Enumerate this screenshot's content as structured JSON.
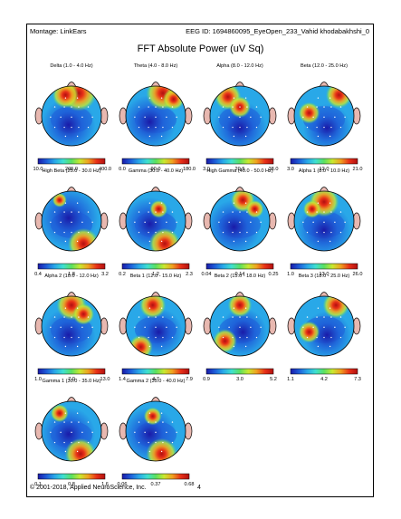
{
  "header": {
    "montage": "Montage:  LinkEars",
    "eeg_id": "EEG ID:  1694860095_EyeOpen_233_Vahid khodabakhshi_0"
  },
  "title": "FFT Absolute Power  (uV Sq)",
  "maps": [
    {
      "label": "Delta (1.0 - 4.0 Hz)",
      "ticks": [
        "10.0",
        "205.0",
        "400.0"
      ],
      "hot": [
        [
          0.62,
          0.12,
          0.3
        ],
        [
          0.4,
          0.15,
          0.22
        ]
      ],
      "cool": [
        [
          0.45,
          0.65,
          0.45
        ]
      ]
    },
    {
      "label": "Theta (4.0 - 8.0 Hz)",
      "ticks": [
        "0.0",
        "90.0",
        "180.0"
      ],
      "hot": [
        [
          0.62,
          0.12,
          0.28
        ],
        [
          0.8,
          0.22,
          0.18
        ]
      ],
      "cool": [
        [
          0.4,
          0.6,
          0.45
        ]
      ]
    },
    {
      "label": "Alpha (8.0 - 12.0 Hz)",
      "ticks": [
        "3.0",
        "20.5",
        "38.0"
      ],
      "hot": [
        [
          0.3,
          0.18,
          0.22
        ],
        [
          0.5,
          0.35,
          0.18
        ]
      ],
      "cool": [
        [
          0.5,
          0.7,
          0.45
        ]
      ]
    },
    {
      "label": "Beta (12.0 - 25.0 Hz)",
      "ticks": [
        "3.0",
        "12.0",
        "21.0"
      ],
      "hot": [
        [
          0.75,
          0.15,
          0.22
        ],
        [
          0.25,
          0.45,
          0.18
        ]
      ],
      "cool": [
        [
          0.55,
          0.7,
          0.4
        ]
      ]
    },
    {
      "label": "High Beta (25.0 - 30.0 Hz)",
      "ticks": [
        "0.4",
        "1.8",
        "3.2"
      ],
      "hot": [
        [
          0.7,
          0.88,
          0.26
        ],
        [
          0.3,
          0.15,
          0.12
        ]
      ],
      "cool": [
        [
          0.45,
          0.45,
          0.5
        ]
      ]
    },
    {
      "label": "Gamma (30.0 - 40.0 Hz)",
      "ticks": [
        "0.2",
        "1.2",
        "2.3"
      ],
      "hot": [
        [
          0.65,
          0.88,
          0.26
        ],
        [
          0.55,
          0.3,
          0.15
        ]
      ],
      "cool": [
        [
          0.4,
          0.55,
          0.45
        ]
      ]
    },
    {
      "label": "High Gamma (40.0 - 50.0 Hz)",
      "ticks": [
        "0.04",
        "0.14",
        "0.25"
      ],
      "hot": [
        [
          0.55,
          0.15,
          0.2
        ],
        [
          0.75,
          0.3,
          0.15
        ]
      ],
      "cool": [
        [
          0.4,
          0.6,
          0.45
        ]
      ]
    },
    {
      "label": "Alpha 1 (8.0 - 10.0 Hz)",
      "ticks": [
        "1.0",
        "13.0",
        "26.0"
      ],
      "hot": [
        [
          0.5,
          0.18,
          0.25
        ],
        [
          0.3,
          0.3,
          0.15
        ]
      ],
      "cool": [
        [
          0.5,
          0.65,
          0.45
        ]
      ]
    },
    {
      "label": "Alpha 2 (10.0 - 12.0 Hz)",
      "ticks": [
        "1.0",
        "7.0",
        "13.0"
      ],
      "hot": [
        [
          0.5,
          0.15,
          0.25
        ],
        [
          0.7,
          0.3,
          0.18
        ]
      ],
      "cool": [
        [
          0.45,
          0.65,
          0.45
        ]
      ]
    },
    {
      "label": "Beta 1 (12.0 - 15.0 Hz)",
      "ticks": [
        "1.4",
        "4.7",
        "7.9"
      ],
      "hot": [
        [
          0.45,
          0.15,
          0.22
        ],
        [
          0.25,
          0.85,
          0.2
        ]
      ],
      "cool": [
        [
          0.55,
          0.6,
          0.4
        ]
      ]
    },
    {
      "label": "Beta 2 (15.0 - 18.0 Hz)",
      "ticks": [
        "0.9",
        "3.0",
        "5.2"
      ],
      "hot": [
        [
          0.5,
          0.15,
          0.2
        ],
        [
          0.25,
          0.75,
          0.2
        ]
      ],
      "cool": [
        [
          0.55,
          0.6,
          0.4
        ]
      ]
    },
    {
      "label": "Beta 3 (18.0 - 25.0 Hz)",
      "ticks": [
        "1.1",
        "4.2",
        "7.3"
      ],
      "hot": [
        [
          0.7,
          0.15,
          0.22
        ],
        [
          0.25,
          0.6,
          0.18
        ]
      ],
      "cool": [
        [
          0.55,
          0.65,
          0.4
        ]
      ]
    },
    {
      "label": "Gamma 1 (30.0 - 35.0 Hz)",
      "ticks": [
        "0.1",
        "0.8",
        "1.6"
      ],
      "hot": [
        [
          0.65,
          0.88,
          0.26
        ],
        [
          0.3,
          0.2,
          0.15
        ]
      ],
      "cool": [
        [
          0.45,
          0.55,
          0.45
        ]
      ]
    },
    {
      "label": "Gamma 2 (35.0 - 40.0 Hz)",
      "ticks": [
        "0.06",
        "0.37",
        "0.68"
      ],
      "hot": [
        [
          0.6,
          0.88,
          0.26
        ],
        [
          0.45,
          0.25,
          0.15
        ]
      ],
      "cool": [
        [
          0.4,
          0.55,
          0.45
        ]
      ]
    }
  ],
  "footer": {
    "copyright": "© 2001-2018, Applied NeuroScience, Inc.",
    "page": "4"
  },
  "colors": {
    "ear": "#e8b8b0",
    "nose": "#e8b8b0",
    "scale": [
      "#1a1aa8",
      "#1e5cd8",
      "#29a8e8",
      "#3fe0d0",
      "#5ae060",
      "#c8e830",
      "#f0a020",
      "#e83018",
      "#b01010"
    ]
  }
}
